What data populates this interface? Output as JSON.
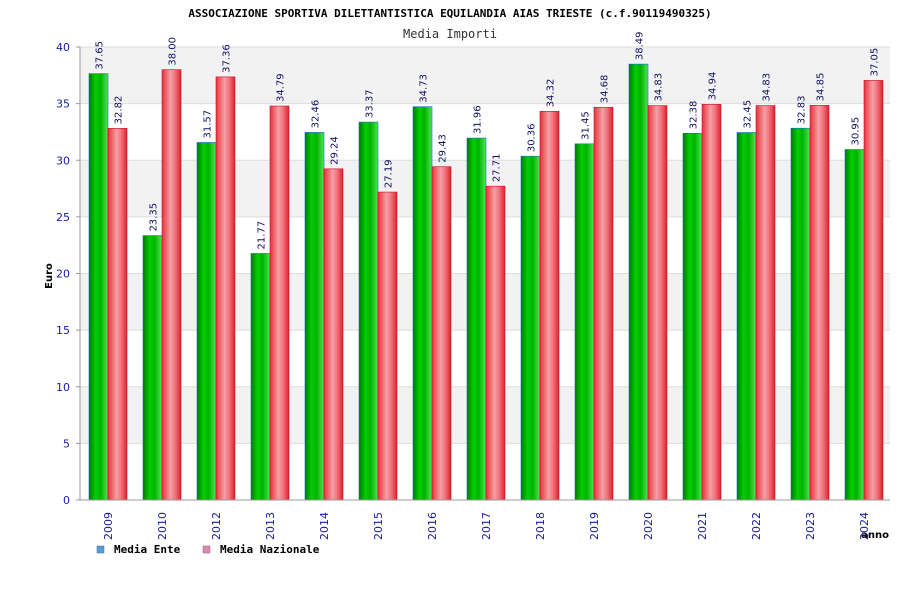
{
  "chart_data": {
    "type": "bar",
    "title": "ASSOCIAZIONE SPORTIVA DILETTANTISTICA EQUILANDIA AIAS TRIESTE (c.f.90119490325)",
    "subtitle": "Media Importi",
    "xlabel": "anno",
    "ylabel": "Euro",
    "ylim": [
      0,
      40
    ],
    "yticks": [
      0,
      5,
      10,
      15,
      20,
      25,
      30,
      35,
      40
    ],
    "grid": true,
    "legend_position": "bottom-left",
    "categories": [
      "2009",
      "2010",
      "2012",
      "2013",
      "2014",
      "2015",
      "2016",
      "2017",
      "2018",
      "2019",
      "2020",
      "2021",
      "2022",
      "2023",
      "2024"
    ],
    "series": [
      {
        "name": "Media Ente",
        "color": "#00b400",
        "legend_color": "#5b9bd5",
        "values": [
          37.65,
          23.35,
          31.57,
          21.77,
          32.46,
          33.37,
          34.73,
          31.96,
          30.36,
          31.45,
          38.49,
          32.38,
          32.45,
          32.83,
          30.95
        ],
        "labels": [
          "37.65",
          "23.35",
          "31.57",
          "21.77",
          "32.46",
          "33.37",
          "34.73",
          "31.96",
          "30.36",
          "31.45",
          "38.49",
          "32.38",
          "32.45",
          "32.83",
          "30.95"
        ]
      },
      {
        "name": "Media Nazionale",
        "color": "#e8303a",
        "legend_color": "#d98cb3",
        "values": [
          32.82,
          38.0,
          37.36,
          34.79,
          29.24,
          27.19,
          29.43,
          27.71,
          34.32,
          34.68,
          34.83,
          34.94,
          34.83,
          34.85,
          37.05
        ],
        "labels": [
          "32.82",
          "38.00",
          "37.36",
          "34.79",
          "29.24",
          "27.19",
          "29.43",
          "27.71",
          "34.32",
          "34.68",
          "34.83",
          "34.94",
          "34.83",
          "34.85",
          "37.05"
        ]
      }
    ]
  }
}
